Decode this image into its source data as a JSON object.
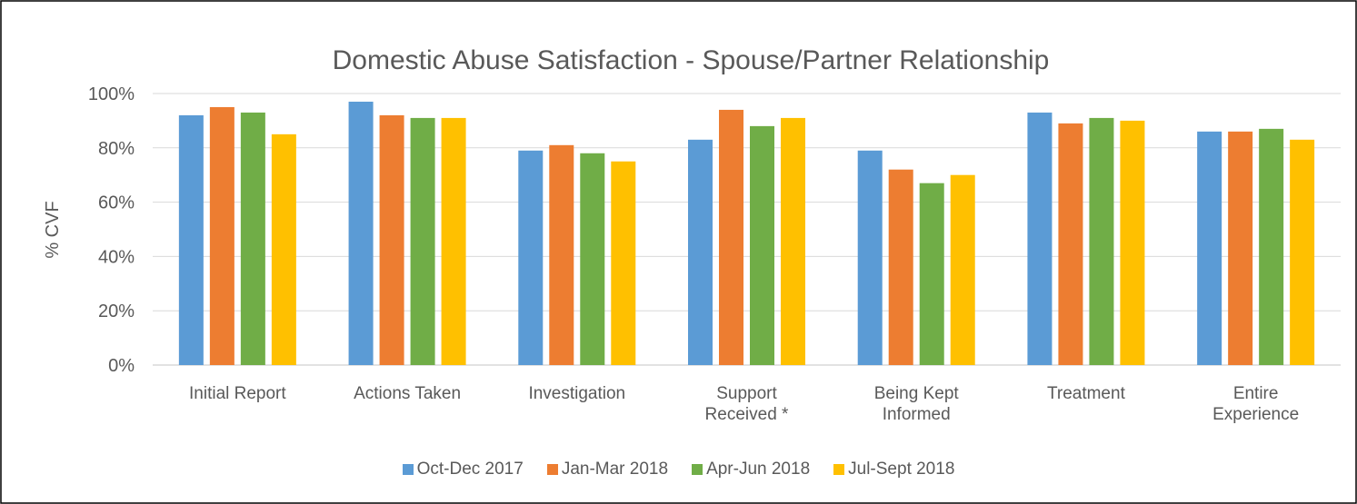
{
  "chart_data": {
    "type": "bar",
    "title": "Domestic Abuse Satisfaction - Spouse/Partner Relationship",
    "y_label": "% CVF",
    "categories": [
      "Initial Report",
      "Actions Taken",
      "Investigation",
      "Support\nReceived *",
      "Being Kept\nInformed",
      "Treatment",
      "Entire\nExperience"
    ],
    "series": [
      {
        "name": "Oct-Dec 2017",
        "color": "#5b9bd5",
        "values": [
          92,
          97,
          79,
          83,
          79,
          93,
          86
        ]
      },
      {
        "name": "Jan-Mar 2018",
        "color": "#ed7d31",
        "values": [
          95,
          92,
          81,
          94,
          72,
          89,
          86
        ]
      },
      {
        "name": "Apr-Jun 2018",
        "color": "#70ad47",
        "values": [
          93,
          91,
          78,
          88,
          67,
          91,
          87
        ]
      },
      {
        "name": "Jul-Sept 2018",
        "color": "#ffc000",
        "values": [
          85,
          91,
          75,
          91,
          70,
          90,
          83
        ]
      }
    ],
    "ylim": [
      0,
      100
    ],
    "yticks": [
      {
        "value": 0,
        "label": "0%"
      },
      {
        "value": 20,
        "label": "20%"
      },
      {
        "value": 40,
        "label": "40%"
      },
      {
        "value": 60,
        "label": "60%"
      },
      {
        "value": 80,
        "label": "80%"
      },
      {
        "value": 100,
        "label": "100%"
      }
    ],
    "grid": true,
    "legend": "bottom"
  }
}
